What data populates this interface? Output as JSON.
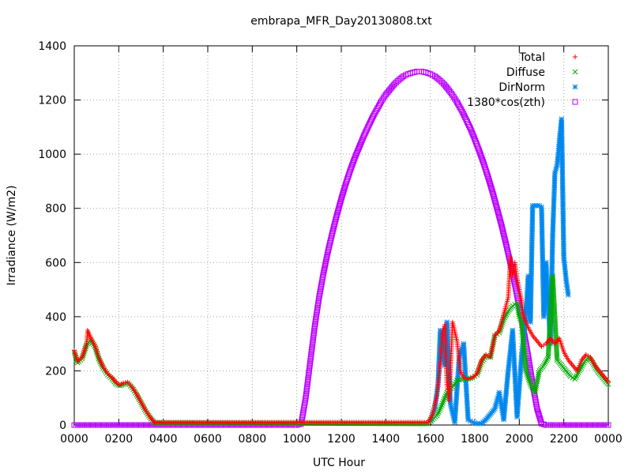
{
  "chart_data": {
    "type": "scatter",
    "title": "embrapa_MFR_Day20130808.txt",
    "xlabel": "UTC Hour",
    "ylabel": "Irradiance (W/m2)",
    "xlim": [
      0,
      24
    ],
    "ylim": [
      0,
      1400
    ],
    "x_ticks": [
      {
        "value": 0,
        "label": "0000"
      },
      {
        "value": 2,
        "label": "0200"
      },
      {
        "value": 4,
        "label": "0400"
      },
      {
        "value": 6,
        "label": "0600"
      },
      {
        "value": 8,
        "label": "0800"
      },
      {
        "value": 10,
        "label": "1000"
      },
      {
        "value": 12,
        "label": "1200"
      },
      {
        "value": 14,
        "label": "1400"
      },
      {
        "value": 16,
        "label": "1600"
      },
      {
        "value": 18,
        "label": "1800"
      },
      {
        "value": 20,
        "label": "2000"
      },
      {
        "value": 22,
        "label": "2200"
      },
      {
        "value": 24,
        "label": "0000"
      }
    ],
    "y_ticks": [
      {
        "value": 0,
        "label": "0"
      },
      {
        "value": 200,
        "label": "200"
      },
      {
        "value": 400,
        "label": "400"
      },
      {
        "value": 600,
        "label": "600"
      },
      {
        "value": 800,
        "label": "800"
      },
      {
        "value": 1000,
        "label": "1000"
      },
      {
        "value": 1200,
        "label": "1200"
      },
      {
        "value": 1400,
        "label": "1400"
      }
    ],
    "grid": true,
    "legend_position": "top-right",
    "series": [
      {
        "name": "Total",
        "marker": "plus",
        "color": "#ff0000",
        "points": [
          [
            0.0,
            275
          ],
          [
            0.15,
            235
          ],
          [
            0.35,
            250
          ],
          [
            0.55,
            300
          ],
          [
            0.6,
            350
          ],
          [
            0.75,
            320
          ],
          [
            0.95,
            290
          ],
          [
            1.1,
            250
          ],
          [
            1.3,
            215
          ],
          [
            1.5,
            190
          ],
          [
            1.7,
            175
          ],
          [
            1.9,
            155
          ],
          [
            2.05,
            148
          ],
          [
            2.2,
            155
          ],
          [
            2.4,
            158
          ],
          [
            2.6,
            140
          ],
          [
            2.8,
            115
          ],
          [
            3.0,
            85
          ],
          [
            3.2,
            55
          ],
          [
            3.4,
            30
          ],
          [
            3.6,
            10
          ],
          [
            15.9,
            10
          ],
          [
            16.1,
            40
          ],
          [
            16.3,
            110
          ],
          [
            16.45,
            230
          ],
          [
            16.55,
            340
          ],
          [
            16.65,
            370
          ],
          [
            16.75,
            150
          ],
          [
            16.85,
            90
          ],
          [
            17.0,
            380
          ],
          [
            17.2,
            310
          ],
          [
            17.35,
            200
          ],
          [
            17.5,
            175
          ],
          [
            17.7,
            170
          ],
          [
            17.9,
            175
          ],
          [
            18.1,
            190
          ],
          [
            18.3,
            240
          ],
          [
            18.5,
            260
          ],
          [
            18.7,
            250
          ],
          [
            18.9,
            330
          ],
          [
            19.1,
            350
          ],
          [
            19.3,
            410
          ],
          [
            19.5,
            470
          ],
          [
            19.6,
            620
          ],
          [
            19.7,
            550
          ],
          [
            19.8,
            600
          ],
          [
            19.9,
            540
          ],
          [
            20.0,
            500
          ],
          [
            20.1,
            460
          ],
          [
            20.2,
            400
          ],
          [
            20.4,
            360
          ],
          [
            20.6,
            330
          ],
          [
            20.8,
            310
          ],
          [
            21.0,
            290
          ],
          [
            21.2,
            300
          ],
          [
            21.4,
            320
          ],
          [
            21.6,
            300
          ],
          [
            21.8,
            320
          ],
          [
            22.0,
            270
          ],
          [
            22.2,
            240
          ],
          [
            22.4,
            220
          ],
          [
            22.6,
            200
          ],
          [
            22.8,
            240
          ],
          [
            23.0,
            260
          ],
          [
            23.2,
            250
          ],
          [
            23.4,
            220
          ],
          [
            23.6,
            200
          ],
          [
            23.8,
            180
          ],
          [
            24.0,
            160
          ]
        ]
      },
      {
        "name": "Diffuse",
        "marker": "cross",
        "color": "#00aa00",
        "points": [
          [
            0.0,
            270
          ],
          [
            0.15,
            230
          ],
          [
            0.35,
            245
          ],
          [
            0.55,
            295
          ],
          [
            0.75,
            315
          ],
          [
            0.95,
            285
          ],
          [
            1.1,
            245
          ],
          [
            1.3,
            210
          ],
          [
            1.5,
            185
          ],
          [
            1.7,
            170
          ],
          [
            1.9,
            150
          ],
          [
            2.05,
            145
          ],
          [
            2.2,
            150
          ],
          [
            2.4,
            155
          ],
          [
            2.6,
            138
          ],
          [
            2.8,
            112
          ],
          [
            3.0,
            82
          ],
          [
            3.2,
            52
          ],
          [
            3.4,
            28
          ],
          [
            3.6,
            8
          ],
          [
            15.9,
            5
          ],
          [
            16.1,
            20
          ],
          [
            16.3,
            35
          ],
          [
            16.45,
            60
          ],
          [
            16.55,
            80
          ],
          [
            16.75,
            120
          ],
          [
            17.0,
            140
          ],
          [
            17.2,
            165
          ],
          [
            17.5,
            170
          ],
          [
            17.7,
            170
          ],
          [
            17.9,
            175
          ],
          [
            18.1,
            185
          ],
          [
            18.3,
            230
          ],
          [
            18.5,
            255
          ],
          [
            18.7,
            250
          ],
          [
            18.9,
            330
          ],
          [
            19.1,
            340
          ],
          [
            19.3,
            390
          ],
          [
            19.5,
            420
          ],
          [
            19.7,
            440
          ],
          [
            19.9,
            450
          ],
          [
            20.0,
            400
          ],
          [
            20.1,
            380
          ],
          [
            20.3,
            200
          ],
          [
            20.5,
            150
          ],
          [
            20.7,
            120
          ],
          [
            20.9,
            200
          ],
          [
            21.1,
            220
          ],
          [
            21.3,
            250
          ],
          [
            21.5,
            550
          ],
          [
            21.7,
            240
          ],
          [
            21.9,
            220
          ],
          [
            22.1,
            200
          ],
          [
            22.3,
            180
          ],
          [
            22.5,
            170
          ],
          [
            22.7,
            200
          ],
          [
            22.9,
            230
          ],
          [
            23.1,
            250
          ],
          [
            23.3,
            230
          ],
          [
            23.5,
            200
          ],
          [
            23.7,
            180
          ],
          [
            23.9,
            160
          ],
          [
            24.0,
            150
          ]
        ]
      },
      {
        "name": "DirNorm",
        "marker": "star",
        "color": "#0088ee",
        "points": [
          [
            16.0,
            15
          ],
          [
            16.2,
            60
          ],
          [
            16.35,
            150
          ],
          [
            16.45,
            350
          ],
          [
            16.55,
            300
          ],
          [
            16.65,
            220
          ],
          [
            16.75,
            380
          ],
          [
            16.9,
            80
          ],
          [
            17.1,
            10
          ],
          [
            17.3,
            250
          ],
          [
            17.5,
            300
          ],
          [
            17.7,
            20
          ],
          [
            17.9,
            10
          ],
          [
            18.1,
            5
          ],
          [
            18.3,
            5
          ],
          [
            18.5,
            20
          ],
          [
            18.7,
            40
          ],
          [
            18.9,
            60
          ],
          [
            19.1,
            120
          ],
          [
            19.3,
            20
          ],
          [
            19.5,
            200
          ],
          [
            19.7,
            350
          ],
          [
            19.9,
            30
          ],
          [
            20.1,
            250
          ],
          [
            20.3,
            410
          ],
          [
            20.4,
            550
          ],
          [
            20.5,
            380
          ],
          [
            20.6,
            810
          ],
          [
            20.7,
            810
          ],
          [
            20.8,
            810
          ],
          [
            20.9,
            810
          ],
          [
            21.0,
            805
          ],
          [
            21.1,
            400
          ],
          [
            21.2,
            600
          ],
          [
            21.3,
            450
          ],
          [
            21.4,
            300
          ],
          [
            21.5,
            700
          ],
          [
            21.6,
            930
          ],
          [
            21.7,
            960
          ],
          [
            21.75,
            1000
          ],
          [
            21.8,
            1050
          ],
          [
            21.9,
            1130
          ],
          [
            22.0,
            620
          ],
          [
            22.1,
            540
          ],
          [
            22.2,
            480
          ]
        ]
      },
      {
        "name": "1380*cos(zth)",
        "marker": "square",
        "color": "#bb00ff",
        "points": [
          [
            0.0,
            0
          ],
          [
            1.0,
            0
          ],
          [
            2.0,
            0
          ],
          [
            3.0,
            0
          ],
          [
            4.0,
            0
          ],
          [
            5.0,
            0
          ],
          [
            6.0,
            0
          ],
          [
            7.0,
            0
          ],
          [
            8.0,
            0
          ],
          [
            9.0,
            0
          ],
          [
            10.0,
            0
          ],
          [
            10.2,
            5
          ],
          [
            10.4,
            100
          ],
          [
            10.6,
            230
          ],
          [
            10.8,
            360
          ],
          [
            11.0,
            470
          ],
          [
            11.2,
            560
          ],
          [
            11.4,
            640
          ],
          [
            11.6,
            710
          ],
          [
            11.8,
            775
          ],
          [
            12.0,
            835
          ],
          [
            12.2,
            890
          ],
          [
            12.4,
            940
          ],
          [
            12.6,
            985
          ],
          [
            12.8,
            1025
          ],
          [
            13.0,
            1065
          ],
          [
            13.2,
            1100
          ],
          [
            13.4,
            1135
          ],
          [
            13.6,
            1165
          ],
          [
            13.8,
            1195
          ],
          [
            14.0,
            1220
          ],
          [
            14.2,
            1240
          ],
          [
            14.4,
            1260
          ],
          [
            14.6,
            1275
          ],
          [
            14.8,
            1288
          ],
          [
            15.0,
            1296
          ],
          [
            15.2,
            1301
          ],
          [
            15.4,
            1305
          ],
          [
            15.6,
            1305
          ],
          [
            15.8,
            1302
          ],
          [
            16.0,
            1296
          ],
          [
            16.2,
            1288
          ],
          [
            16.4,
            1275
          ],
          [
            16.6,
            1260
          ],
          [
            16.8,
            1240
          ],
          [
            17.0,
            1218
          ],
          [
            17.2,
            1192
          ],
          [
            17.4,
            1163
          ],
          [
            17.6,
            1130
          ],
          [
            17.8,
            1095
          ],
          [
            18.0,
            1055
          ],
          [
            18.2,
            1012
          ],
          [
            18.4,
            966
          ],
          [
            18.6,
            915
          ],
          [
            18.8,
            860
          ],
          [
            19.0,
            800
          ],
          [
            19.2,
            738
          ],
          [
            19.4,
            670
          ],
          [
            19.6,
            598
          ],
          [
            19.8,
            520
          ],
          [
            20.0,
            438
          ],
          [
            20.2,
            350
          ],
          [
            20.4,
            255
          ],
          [
            20.6,
            150
          ],
          [
            20.8,
            60
          ],
          [
            21.0,
            5
          ],
          [
            21.2,
            0
          ],
          [
            22.0,
            0
          ],
          [
            23.0,
            0
          ],
          [
            24.0,
            0
          ]
        ]
      }
    ]
  }
}
